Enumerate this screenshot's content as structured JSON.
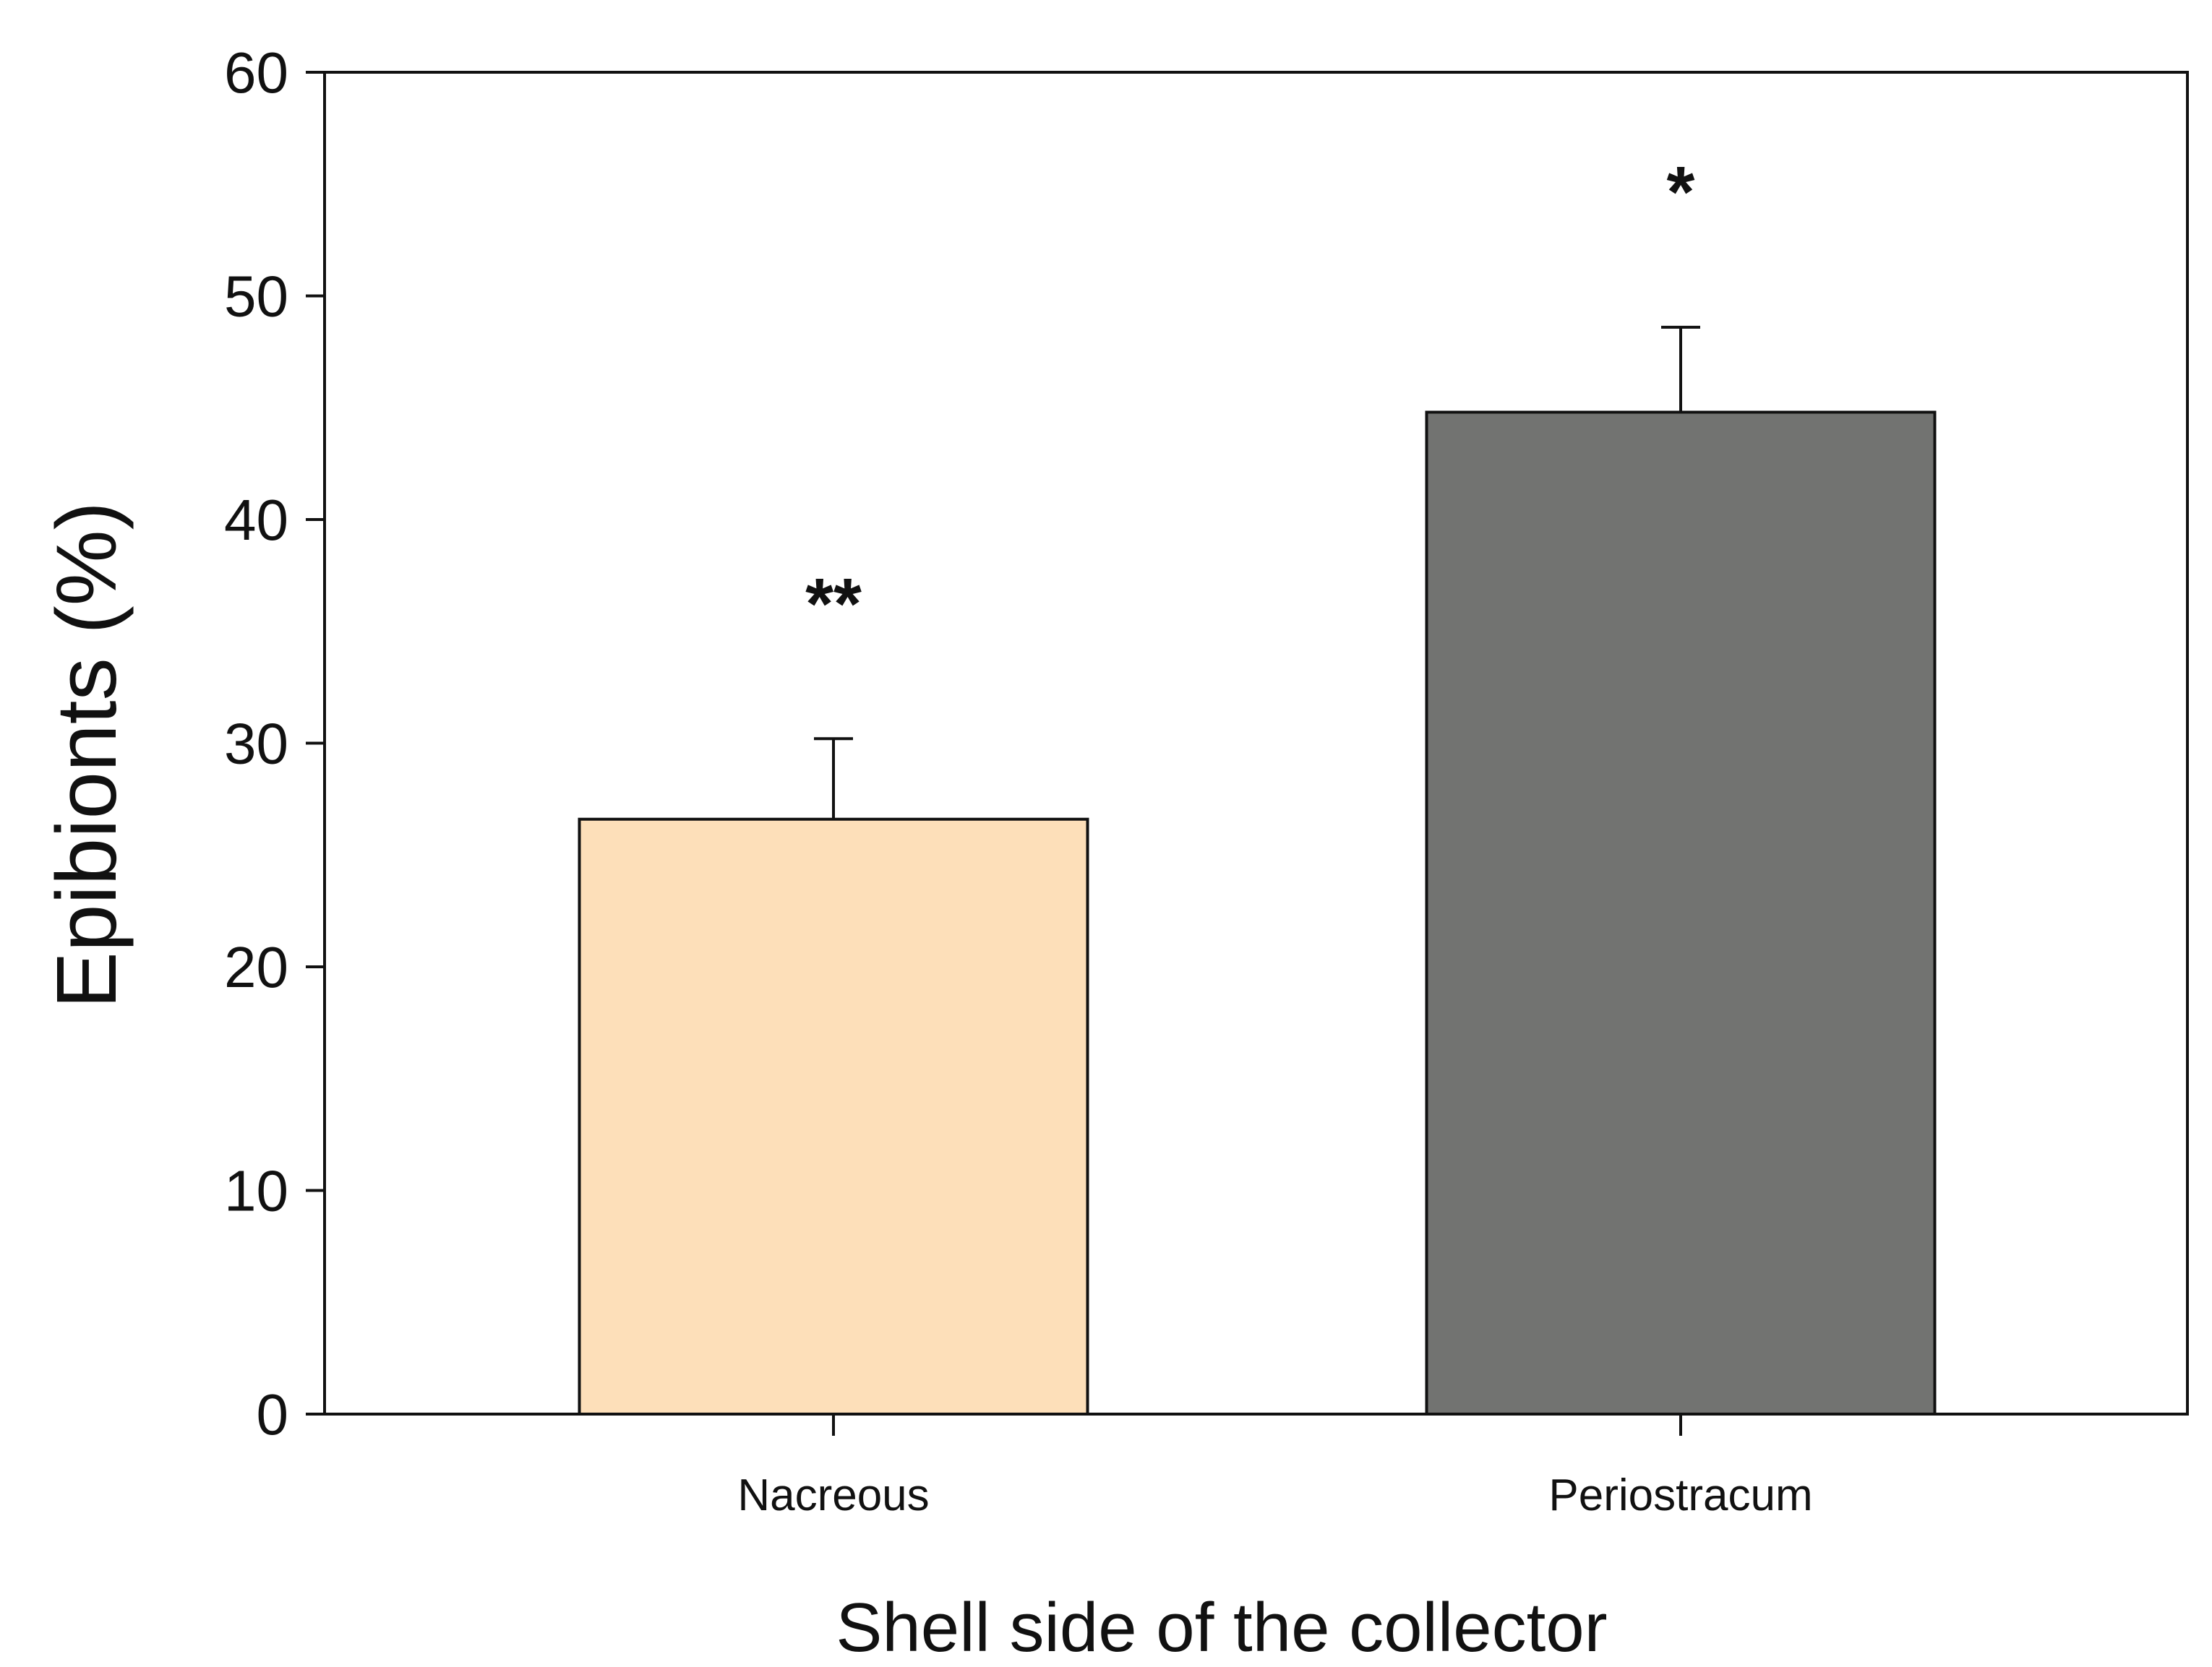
{
  "chart_data": {
    "type": "bar",
    "title": "",
    "xlabel": "Shell side of the collector",
    "ylabel": "Epibionts (%)",
    "ylim": [
      0,
      60
    ],
    "yticks": [
      0,
      10,
      20,
      30,
      40,
      50,
      60
    ],
    "categories": [
      "Nacreous",
      "Periostracum"
    ],
    "values": [
      26.6,
      44.8
    ],
    "errors": [
      3.6,
      3.8
    ],
    "annotations": [
      "**",
      "*"
    ],
    "colors": [
      "#fddfb9",
      "#727371"
    ],
    "grid": false,
    "legend": "none"
  }
}
